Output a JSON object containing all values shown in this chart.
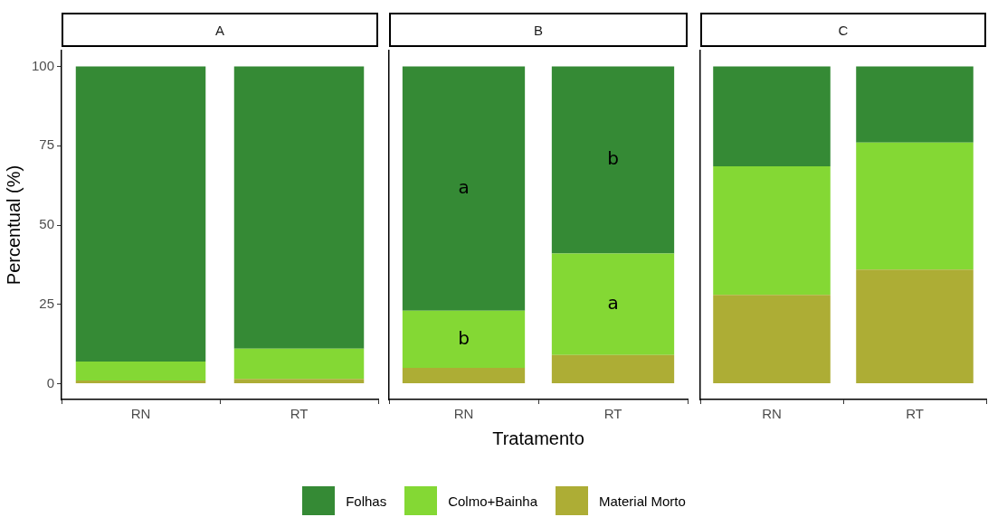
{
  "chart_data": [
    {
      "type": "bar",
      "title": "A",
      "ylabel": "Percentual (%)",
      "categories": [
        "RN",
        "RT"
      ],
      "stacked": true,
      "ylim": [
        -5,
        105
      ],
      "yticks": [
        0,
        25,
        50,
        75,
        100
      ],
      "grid": false,
      "legend": false,
      "series": [
        {
          "color": "#adad35",
          "values": [
            1,
            1.5
          ]
        },
        {
          "color": "#84d834",
          "values": [
            6,
            9.5
          ]
        },
        {
          "color": "#358a35",
          "values": [
            93,
            89
          ]
        }
      ]
    },
    {
      "type": "bar",
      "title": "B",
      "xlabel": "Tratamento",
      "categories": [
        "RN",
        "RT"
      ],
      "stacked": true,
      "ylim": [
        -5,
        105
      ],
      "yticks": [
        0,
        25,
        50,
        75,
        100
      ],
      "grid": false,
      "legend": "bottom",
      "tick_labels": "x",
      "series": [
        {
          "name": "Material Morto",
          "color": "#adad35",
          "values": [
            5,
            9
          ]
        },
        {
          "name": "Colmo+Bainha",
          "color": "#84d834",
          "values": [
            18,
            32
          ]
        },
        {
          "name": "Folhas",
          "color": "#358a35",
          "values": [
            77,
            59
          ]
        }
      ],
      "annotations": [
        "a",
        "b",
        "b",
        "a"
      ]
    },
    {
      "type": "bar",
      "title": "C",
      "categories": [
        "RN",
        "RT"
      ],
      "stacked": true,
      "ylim": [
        -5,
        105
      ],
      "yticks": [
        0,
        25,
        50,
        75,
        100
      ],
      "grid": false,
      "legend": false,
      "tick_labels": "x",
      "series": [
        {
          "color": "#adad35",
          "values": [
            28,
            36
          ]
        },
        {
          "color": "#84d834",
          "values": [
            40.5,
            40
          ]
        },
        {
          "color": "#358a35",
          "values": [
            31.5,
            24
          ]
        }
      ]
    }
  ]
}
